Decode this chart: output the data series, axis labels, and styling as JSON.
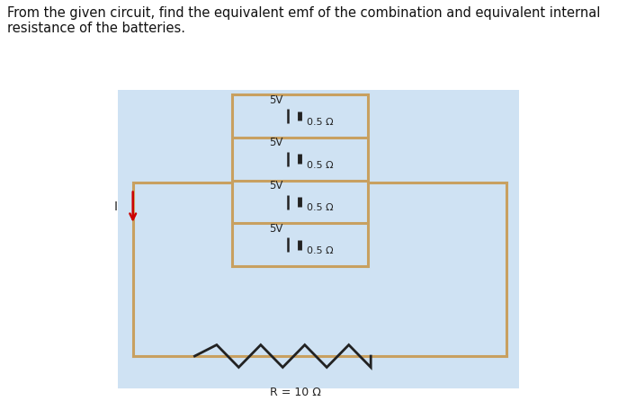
{
  "title_text": "From the given circuit, find the equivalent emf of the combination and equivalent internal\nresistance of the batteries.",
  "title_fontsize": 10.5,
  "background_color": "#cfe2f3",
  "outer_bg": "#ffffff",
  "circuit_color": "#c8a060",
  "text_color": "#333333",
  "arrow_color": "#cc0000",
  "battery_voltage": "5V",
  "battery_resistance": "0.5 Ω",
  "resistor_label": "R = 10 Ω",
  "current_label": "I",
  "n_batteries": 4
}
